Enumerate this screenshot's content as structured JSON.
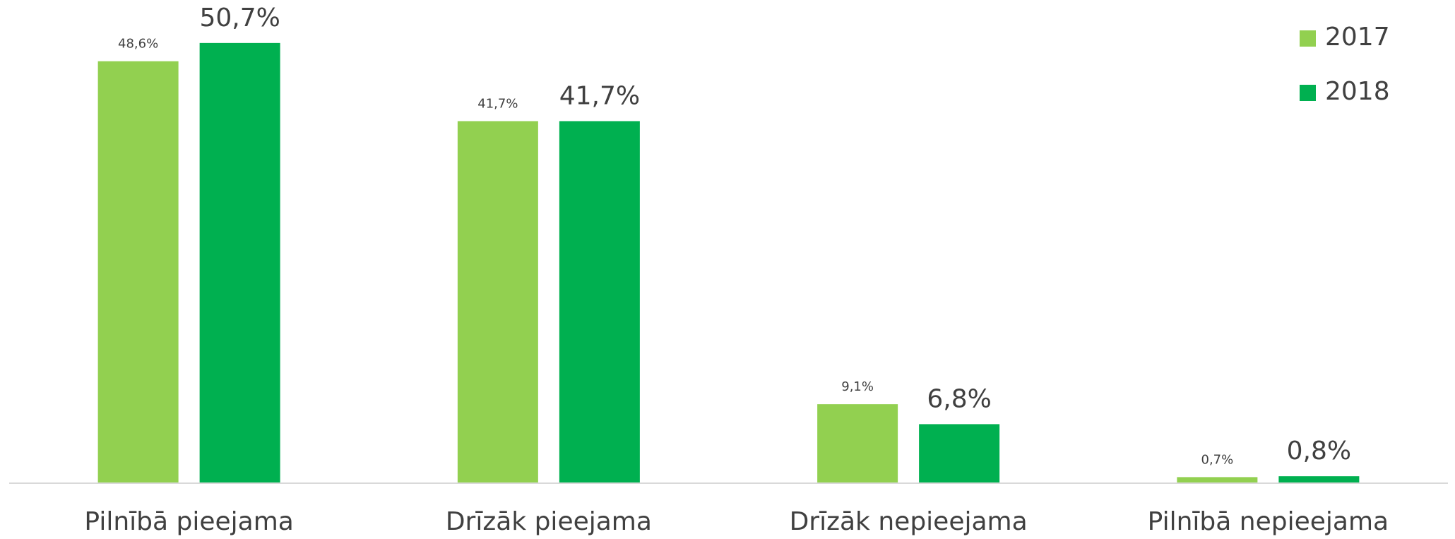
{
  "chart_data": {
    "type": "bar",
    "categories": [
      "Pilnībā pieejama",
      "Drīzāk pieejama",
      "Drīzāk nepieejama",
      "Pilnībā nepieejama"
    ],
    "series": [
      {
        "name": "2017",
        "color": "#92d050",
        "values": [
          48.6,
          41.7,
          9.1,
          0.7
        ],
        "value_labels": [
          "48,6%",
          "41,7%",
          "9,1%",
          "0,7%"
        ]
      },
      {
        "name": "2018",
        "color": "#00b050",
        "values": [
          50.7,
          41.7,
          6.8,
          0.8
        ],
        "value_labels": [
          "50,7%",
          "41,7%",
          "6,8%",
          "0,8%"
        ]
      }
    ],
    "ylim": [
      0,
      55
    ],
    "legend": "upper right"
  }
}
